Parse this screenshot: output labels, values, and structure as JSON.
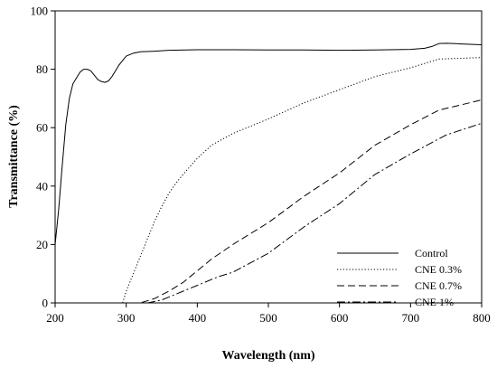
{
  "chart_data": {
    "type": "line",
    "title": "",
    "xlabel": "Wavelength (nm)",
    "ylabel": "Transmittance (%)",
    "xlim": [
      200,
      800
    ],
    "ylim": [
      0,
      100
    ],
    "xticks": [
      200,
      300,
      400,
      500,
      600,
      700,
      800
    ],
    "yticks": [
      0,
      20,
      40,
      60,
      80,
      100
    ],
    "grid": false,
    "legend_position": "bottom-right",
    "series": [
      {
        "name": "Control",
        "dash": "solid",
        "color": "#000000",
        "x": [
          200,
          205,
          210,
          215,
          220,
          225,
          230,
          235,
          240,
          245,
          250,
          255,
          260,
          265,
          270,
          275,
          280,
          285,
          290,
          295,
          300,
          310,
          320,
          340,
          360,
          400,
          450,
          500,
          550,
          600,
          650,
          700,
          720,
          730,
          740,
          750,
          760,
          780,
          800
        ],
        "y": [
          20,
          32,
          47,
          61,
          70,
          75,
          77,
          79,
          80,
          80,
          79.5,
          78,
          76.5,
          75.8,
          75.5,
          76,
          77.5,
          79.5,
          81.5,
          83,
          84.5,
          85.5,
          86,
          86.2,
          86.5,
          86.7,
          86.7,
          86.6,
          86.6,
          86.5,
          86.6,
          86.8,
          87.2,
          87.8,
          88.8,
          88.9,
          88.8,
          88.6,
          88.4
        ]
      },
      {
        "name": "CNE 0.3%",
        "dash": "dotted",
        "color": "#000000",
        "x": [
          200,
          290,
          295,
          300,
          310,
          320,
          330,
          340,
          350,
          360,
          370,
          380,
          400,
          420,
          450,
          500,
          550,
          600,
          650,
          700,
          740,
          800
        ],
        "y": [
          0,
          0,
          0,
          4,
          10,
          16,
          22,
          28,
          33,
          37.5,
          41,
          44,
          49.5,
          54,
          58,
          63,
          68.5,
          73,
          77.5,
          80.5,
          83.5,
          84
        ]
      },
      {
        "name": "CNE 0.7%",
        "dash": "dashed",
        "color": "#000000",
        "x": [
          200,
          320,
          340,
          360,
          380,
          400,
          420,
          450,
          500,
          550,
          600,
          650,
          700,
          740,
          800
        ],
        "y": [
          0,
          0,
          1.5,
          4,
          7,
          11,
          15,
          20,
          27.5,
          36.5,
          44.5,
          54,
          61,
          66,
          69.5
        ]
      },
      {
        "name": "CNE 1%",
        "dash": "dash-dot",
        "color": "#000000",
        "x": [
          200,
          330,
          350,
          370,
          400,
          430,
          450,
          500,
          550,
          600,
          650,
          700,
          750,
          800
        ],
        "y": [
          0,
          0,
          1,
          3,
          6,
          9,
          10.5,
          17,
          26,
          34,
          44,
          51,
          57.5,
          61.5
        ]
      }
    ]
  }
}
